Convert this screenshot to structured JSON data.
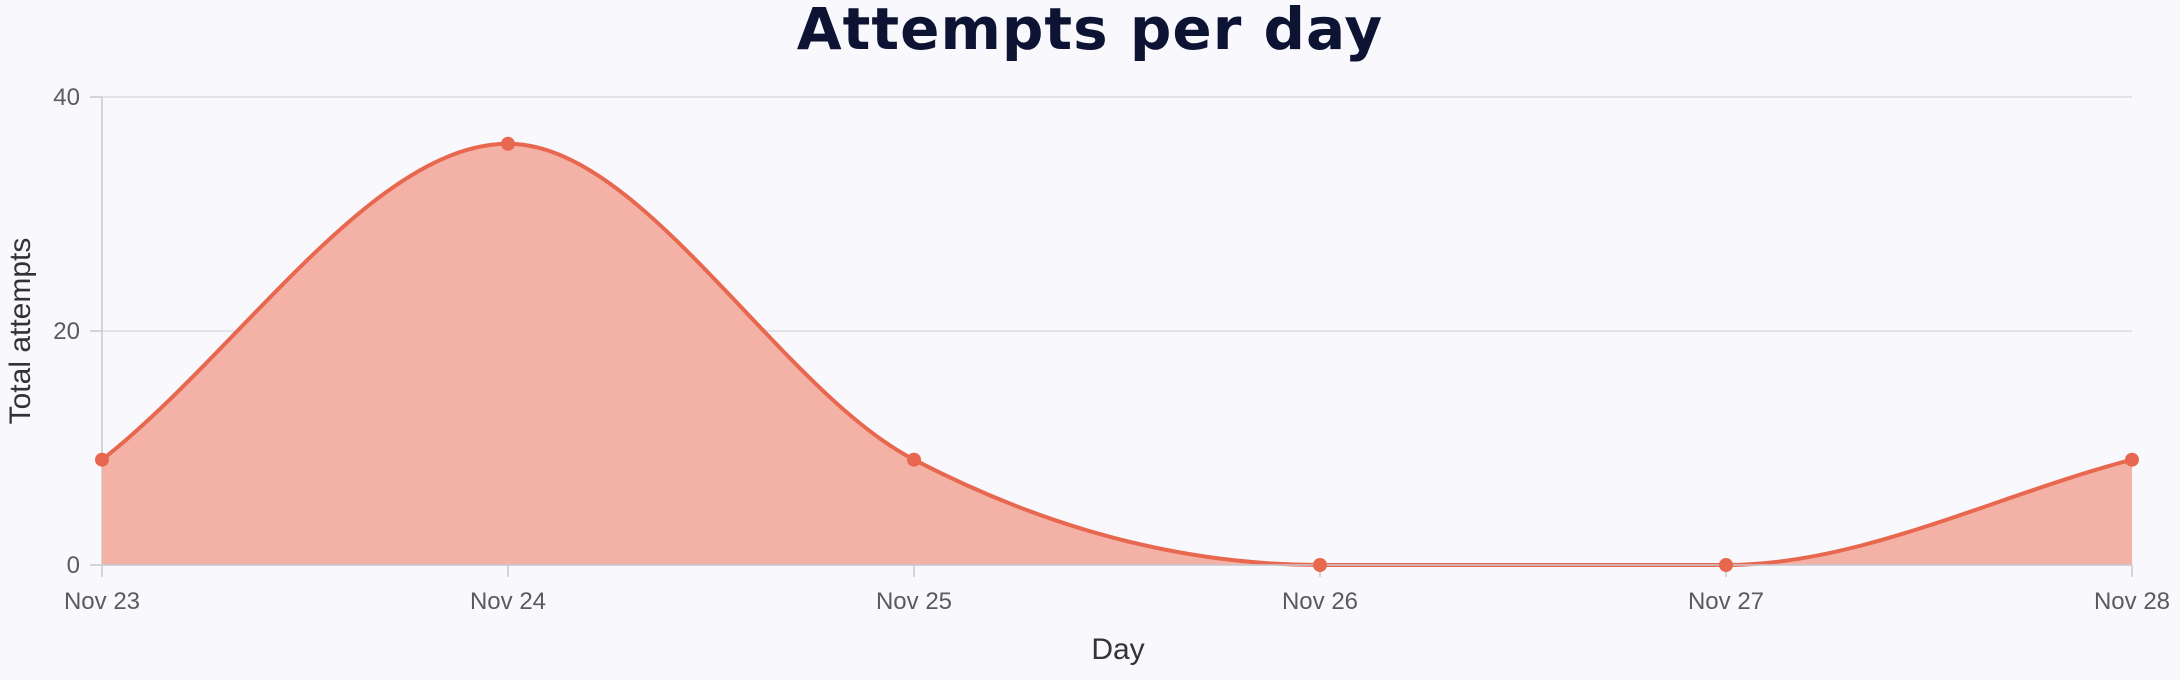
{
  "chart_data": {
    "type": "area",
    "title": "Attempts per day",
    "xlabel": "Day",
    "ylabel": "Total attempts",
    "categories": [
      "Nov 23",
      "Nov 24",
      "Nov 25",
      "Nov 26",
      "Nov 27",
      "Nov 28"
    ],
    "series": [
      {
        "values": [
          9,
          36,
          9,
          0,
          0,
          9
        ]
      }
    ],
    "ylim": [
      0,
      40
    ],
    "yticks": [
      0,
      20,
      40
    ],
    "grid": true,
    "smooth": true,
    "colors": {
      "line": "#e8684f",
      "fill": "#f4b1a6",
      "grid": "#dcdce4",
      "axis": "#c8c8d0"
    }
  }
}
